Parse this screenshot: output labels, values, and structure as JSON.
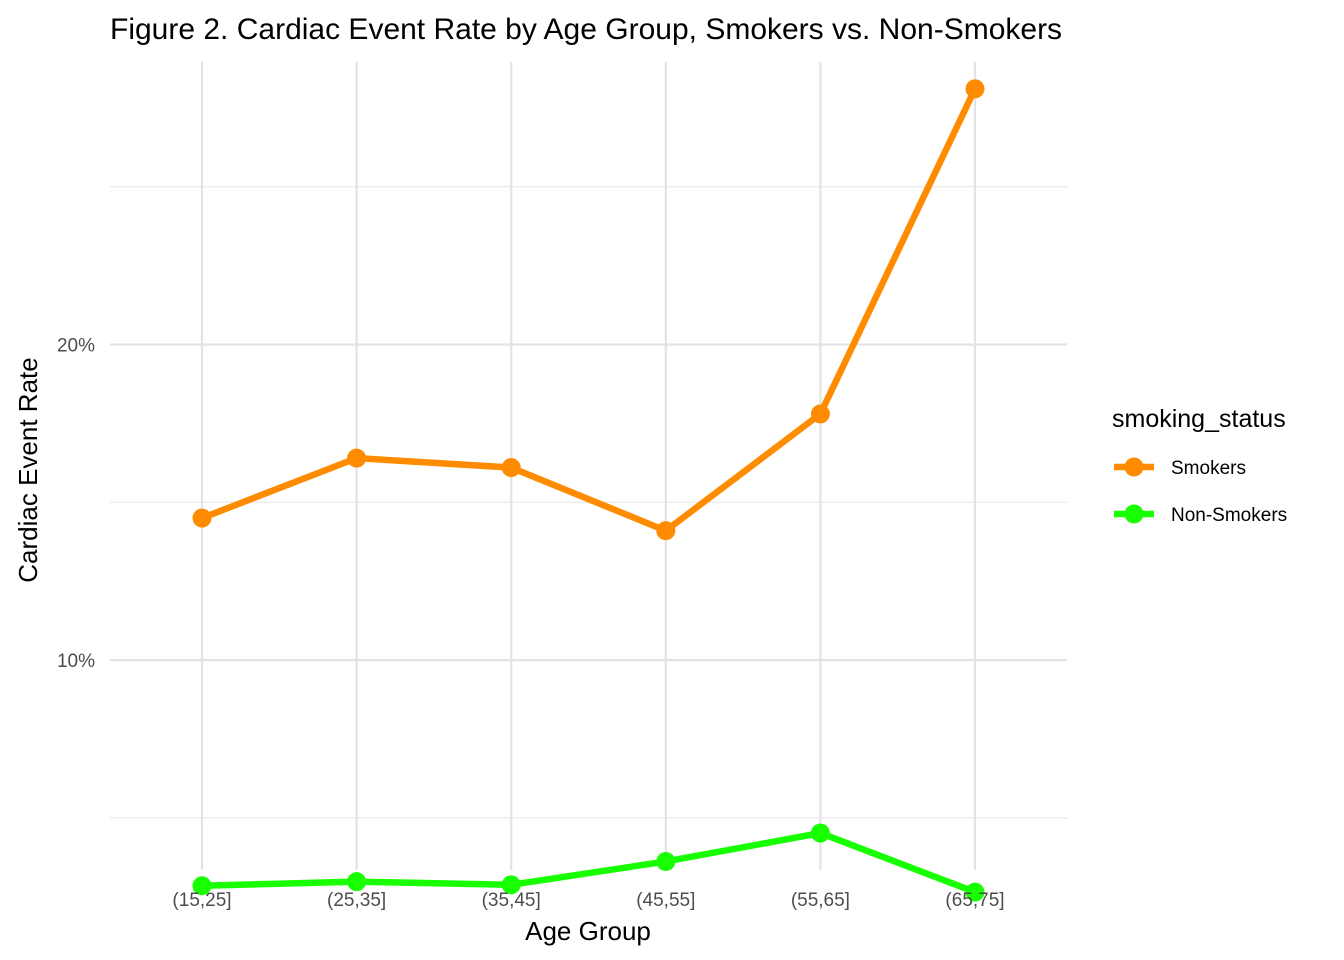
{
  "chart_data": {
    "type": "line",
    "title": "Figure 2. Cardiac Event Rate by Age Group, Smokers vs. Non-Smokers",
    "xlabel": "Age Group",
    "ylabel": "Cardiac Event Rate",
    "categories": [
      "(15,25]",
      "(25,35]",
      "(35,45]",
      "(45,55]",
      "(55,65]",
      "(65,75]"
    ],
    "y_ticks": [
      {
        "value": 0.1,
        "label": "10%"
      },
      {
        "value": 0.2,
        "label": "20%"
      }
    ],
    "y_minor_ticks": [
      0.05,
      0.15,
      0.25
    ],
    "ylim": [
      0.0335,
      0.2895
    ],
    "grid": true,
    "legend": {
      "title": "smoking_status",
      "position": "right"
    },
    "series": [
      {
        "name": "Smokers",
        "color": "#FF8C00",
        "values": [
          0.145,
          0.164,
          0.161,
          0.141,
          0.178,
          0.281
        ]
      },
      {
        "name": "Non-Smokers",
        "color": "#17FF00",
        "values": [
          0.0285,
          0.0298,
          0.0288,
          0.0362,
          0.0452,
          0.0265
        ]
      }
    ]
  }
}
